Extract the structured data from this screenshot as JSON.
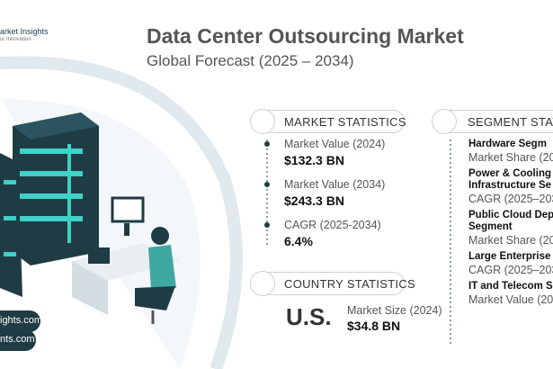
{
  "brand": {
    "name": "arket Insights",
    "tagline": "ur Innovation"
  },
  "header": {
    "title": "Data Center Outsourcing Market",
    "subtitle": "Global Forecast (2025 – 2034)"
  },
  "market_statistics": {
    "heading": "MARKET STATISTICS",
    "items": [
      {
        "label": "Market Value (2024)",
        "value": "$132.3 BN"
      },
      {
        "label": "Market Value (2034)",
        "value": "$243.3 BN"
      },
      {
        "label": "CAGR (2025-2034)",
        "value": "6.4%"
      }
    ]
  },
  "country_statistics": {
    "heading": "COUNTRY STATISTICS",
    "country": "U.S.",
    "label": "Market Size (2024)",
    "value": "$34.8 BN"
  },
  "segment_statistics": {
    "heading": "SEGMENT STATI",
    "items": [
      {
        "name": [
          "Hardware Segm"
        ],
        "label": "Market Share (20"
      },
      {
        "name": [
          "Power & Cooling",
          "Infrastructure Se"
        ],
        "label": "CAGR (2025–203"
      },
      {
        "name": [
          "Public Cloud Dep",
          "Segment"
        ],
        "label": "Market Share (20"
      },
      {
        "name": [
          "Large Enterprise"
        ],
        "label": "CAGR (2025–203"
      },
      {
        "name": [
          "IT and Telecom S"
        ],
        "label": "Market Value (20"
      }
    ]
  },
  "footer_links": [
    "ights.com",
    "nts.com"
  ]
}
